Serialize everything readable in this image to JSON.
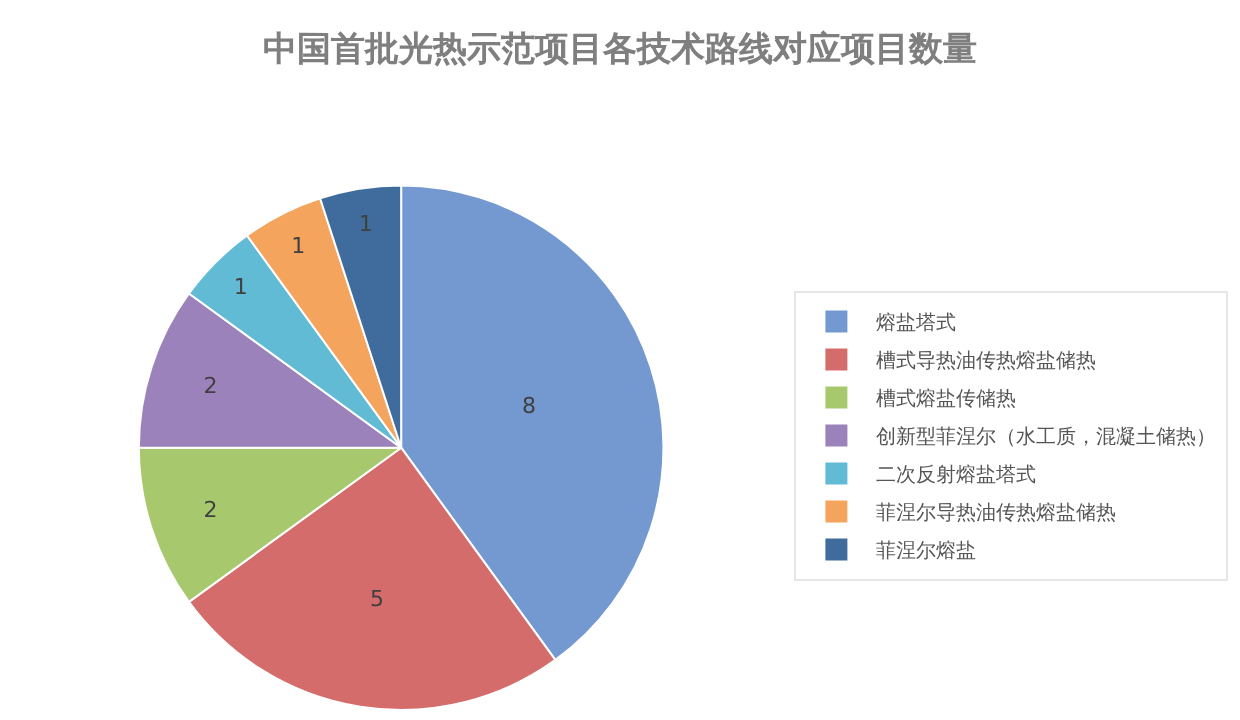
{
  "chart_data": {
    "type": "pie",
    "title": "中国首批光热示范项目各技术路线对应项目数量",
    "categories": [
      "熔盐塔式",
      "槽式导热油传热熔盐储热",
      "槽式熔盐传储热",
      "创新型菲涅尔（水工质，混凝土储热）",
      "二次反射熔盐塔式",
      "菲涅尔导热油传热熔盐储热",
      "菲涅尔熔盐"
    ],
    "values": [
      8,
      5,
      2,
      2,
      1,
      1,
      1
    ],
    "colors": [
      "#7399d0",
      "#d46c6c",
      "#a7c86c",
      "#9b82ba",
      "#62bbd5",
      "#f5a45e",
      "#3f6c9c"
    ],
    "data_labels": true,
    "legend": "right"
  }
}
